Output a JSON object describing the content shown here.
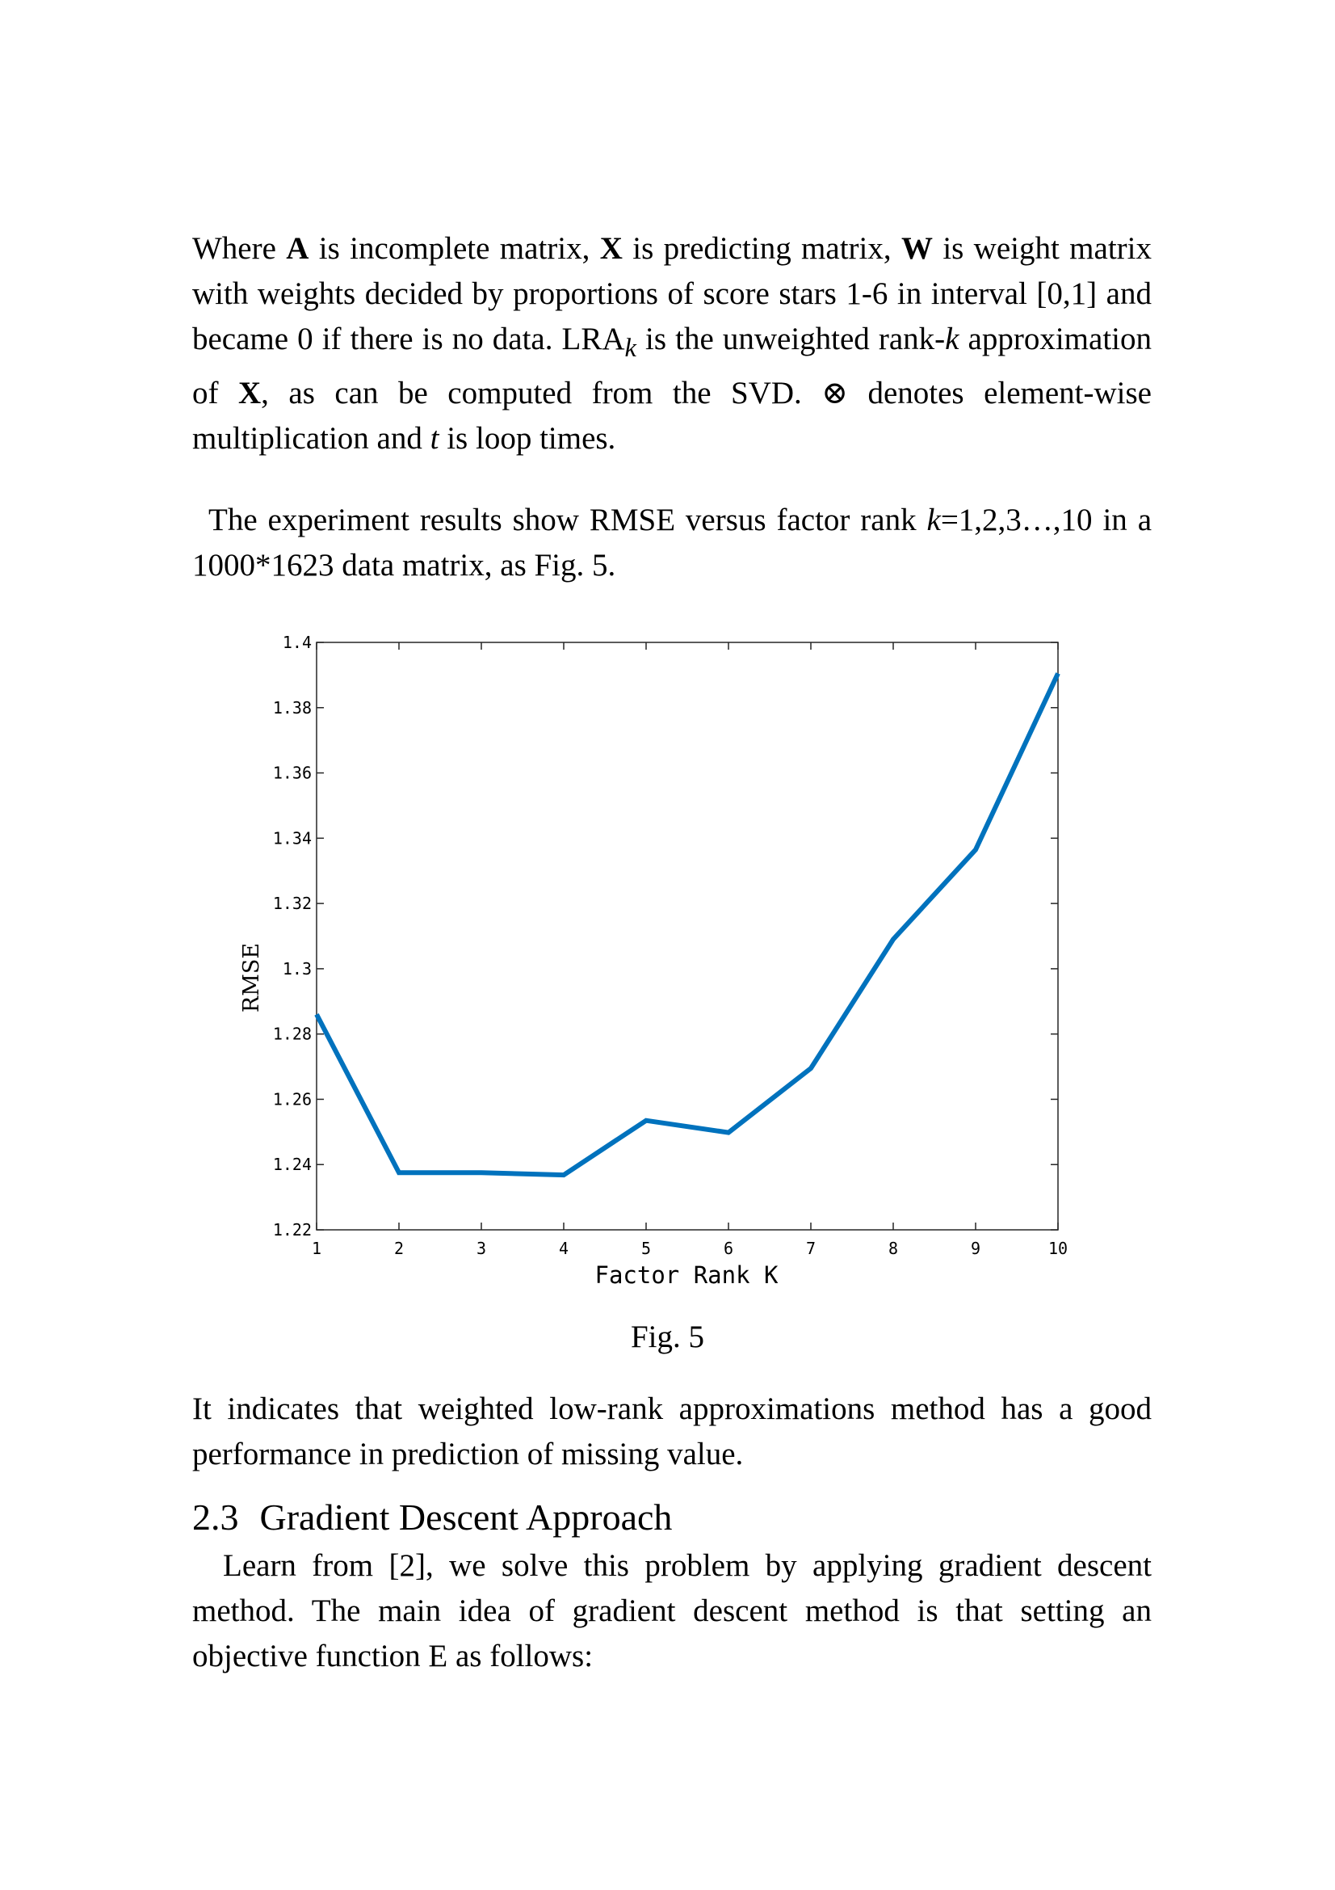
{
  "p1": {
    "s1": "Where ",
    "A": "A",
    "s2": " is incomplete matrix, ",
    "X": "X",
    "s3": " is predicting matrix, ",
    "W": "W",
    "s4": " is weight matrix with weights decided by proportions of score stars 1-6 in interval [0,1] and became 0 if there is no data. LRA",
    "k_sub": "k",
    "s5": " is the unweighted rank-",
    "k": "k",
    "s6": " approximation of ",
    "X2": "X",
    "s7": ", as can be computed from the SVD. ⊗ denotes element-wise multiplication and ",
    "t": "t",
    "s8": " is loop times."
  },
  "p2": {
    "s1": "The experiment results show RMSE versus factor rank ",
    "k": "k",
    "s2": "=1,2,3…,10 in a 1000*1623 data matrix, as Fig. 5."
  },
  "figure": {
    "caption": "Fig. 5"
  },
  "p3": "It indicates that weighted low-rank approximations method has a good performance in prediction of missing value.",
  "heading": {
    "number": "2.3",
    "title": "Gradient Descent Approach"
  },
  "p4": "Learn from [2], we solve this problem by applying gradient descent method. The main idea of gradient descent method is that setting an objective function E as follows:",
  "chart_data": {
    "type": "line",
    "xlabel": "Factor Rank K",
    "ylabel": "RMSE",
    "xlim": [
      1,
      10
    ],
    "ylim": [
      1.22,
      1.4
    ],
    "xticks": [
      1,
      2,
      3,
      4,
      5,
      6,
      7,
      8,
      9,
      10
    ],
    "yticks": [
      1.22,
      1.24,
      1.26,
      1.28,
      1.3,
      1.32,
      1.34,
      1.36,
      1.38,
      1.4
    ],
    "ytick_labels": [
      "1.22",
      "1.24",
      "1.26",
      "1.28",
      "1.3",
      "1.32",
      "1.34",
      "1.36",
      "1.38",
      "1.4"
    ],
    "x": [
      1,
      2,
      3,
      4,
      5,
      6,
      7,
      8,
      9,
      10
    ],
    "y": [
      1.286,
      1.2375,
      1.2375,
      1.2368,
      1.2535,
      1.2498,
      1.2695,
      1.309,
      1.3365,
      1.3905
    ],
    "grid": false,
    "line_color": "#0072bd"
  }
}
